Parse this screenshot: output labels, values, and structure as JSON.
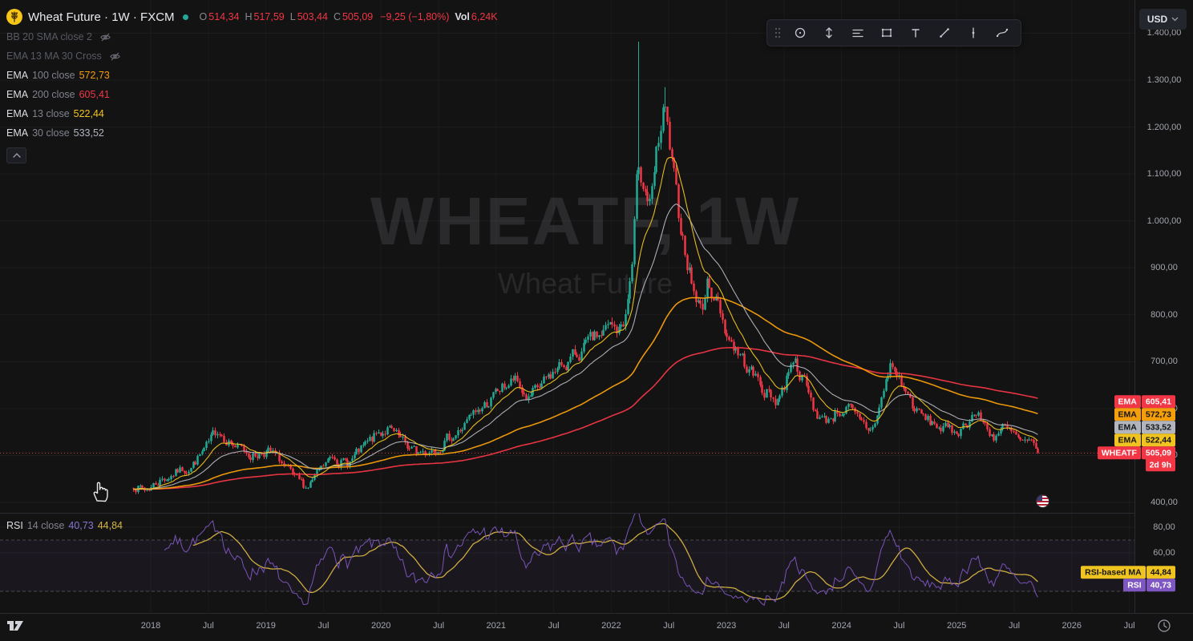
{
  "header": {
    "symbol_title": "Wheat Future · 1W · FXCM",
    "status_color": "#26a69a",
    "ohlc": [
      {
        "label": "O",
        "value": "514,34"
      },
      {
        "label": "H",
        "value": "517,59"
      },
      {
        "label": "L",
        "value": "503,44"
      },
      {
        "label": "C",
        "value": "505,09"
      }
    ],
    "change": "−9,25 (−1,80%)",
    "vol_label": "Vol",
    "vol_value": "6,24K",
    "value_color": "#f23645"
  },
  "legend": {
    "disabled_rows": [
      {
        "label": "BB 20 SMA close 2"
      },
      {
        "label": "EMA 13 MA 30 Cross"
      }
    ],
    "indicator_rows": [
      {
        "name": "EMA",
        "params": "100 close",
        "value": "572,73",
        "color": "#f59e0b"
      },
      {
        "name": "EMA",
        "params": "200 close",
        "value": "605,41",
        "color": "#f23645"
      },
      {
        "name": "EMA",
        "params": "13 close",
        "value": "522,44",
        "color": "#f0c420"
      },
      {
        "name": "EMA",
        "params": "30 close",
        "value": "533,52",
        "color": "#b2b5be"
      }
    ]
  },
  "watermark": {
    "line1": "WHEATF, 1W",
    "line2": "Wheat Future"
  },
  "price_axis": {
    "currency": "USD",
    "ticks": [
      {
        "label": "1.400,00",
        "value": 1400
      },
      {
        "label": "1.300,00",
        "value": 1300
      },
      {
        "label": "1.200,00",
        "value": 1200
      },
      {
        "label": "1.100,00",
        "value": 1100
      },
      {
        "label": "1.000,00",
        "value": 1000
      },
      {
        "label": "900,00",
        "value": 900
      },
      {
        "label": "800,00",
        "value": 800
      },
      {
        "label": "700,00",
        "value": 700
      },
      {
        "label": "600,00",
        "value": 600
      },
      {
        "label": "500,00",
        "value": 500
      },
      {
        "label": "400,00",
        "value": 400
      }
    ],
    "tags": [
      {
        "label": "EMA",
        "value": "605,41",
        "num": 605.41,
        "bg": "#f23645",
        "fg": "#ffffff"
      },
      {
        "label": "EMA",
        "value": "572,73",
        "num": 572.73,
        "bg": "#f59e0b",
        "fg": "#131313"
      },
      {
        "label": "EMA",
        "value": "533,52",
        "num": 533.52,
        "bg": "#b2b5be",
        "fg": "#131313"
      },
      {
        "label": "EMA",
        "value": "522,44",
        "num": 522.44,
        "bg": "#f0c420",
        "fg": "#131313"
      },
      {
        "label": "WHEATF",
        "value": "505,09",
        "num": 505.09,
        "bg": "#f23645",
        "fg": "#ffffff"
      }
    ],
    "countdown": "2d 9h"
  },
  "rsi_pane": {
    "legend": {
      "name": "RSI",
      "params": "14 close",
      "value1": "40,73",
      "value1_color": "#8a76d6",
      "value2": "44,84",
      "value2_color": "#d8b542"
    },
    "ticks": [
      {
        "label": "80,00",
        "value": 80
      },
      {
        "label": "60,00",
        "value": 60
      }
    ],
    "tags": [
      {
        "label": "RSI-based MA",
        "value": "44,84",
        "num": 44.84,
        "bg": "#f0c420",
        "fg": "#131313"
      },
      {
        "label": "RSI",
        "value": "40,73",
        "num": 40.73,
        "bg": "#7e57c2",
        "fg": "#ffffff"
      }
    ]
  },
  "time_axis": {
    "labels": [
      {
        "text": "2018",
        "t": 2018
      },
      {
        "text": "Jul",
        "t": 2018.5
      },
      {
        "text": "2019",
        "t": 2019
      },
      {
        "text": "Jul",
        "t": 2019.5
      },
      {
        "text": "2020",
        "t": 2020
      },
      {
        "text": "Jul",
        "t": 2020.5
      },
      {
        "text": "2021",
        "t": 2021
      },
      {
        "text": "Jul",
        "t": 2021.5
      },
      {
        "text": "2022",
        "t": 2022
      },
      {
        "text": "Jul",
        "t": 2022.5
      },
      {
        "text": "2023",
        "t": 2023
      },
      {
        "text": "Jul",
        "t": 2023.5
      },
      {
        "text": "2024",
        "t": 2024
      },
      {
        "text": "Jul",
        "t": 2024.5
      },
      {
        "text": "2025",
        "t": 2025
      },
      {
        "text": "Jul",
        "t": 2025.5
      },
      {
        "text": "2026",
        "t": 2026
      },
      {
        "text": "Jul",
        "t": 2026.5
      }
    ]
  },
  "toolbar": {
    "tools": [
      "crosshair",
      "price-range",
      "parallel-lines",
      "rectangle",
      "text",
      "trend-line",
      "vertical-line",
      "curve"
    ]
  },
  "chart_data": {
    "type": "candlestick",
    "symbol": "WHEATF",
    "name": "Wheat Future",
    "timeframe": "1W",
    "exchange": "FXCM",
    "last": {
      "open": 514.34,
      "high": 517.59,
      "low": 503.44,
      "close": 505.09,
      "change": -9.25,
      "change_pct": -1.8,
      "volume": "6,24K"
    },
    "price_range": [
      400,
      1400
    ],
    "time_range": [
      2017.85,
      2025.72
    ],
    "grid": true,
    "candle_colors": {
      "up": "#22ab94",
      "down": "#f23645"
    },
    "close_path_anchors": [
      [
        2017.85,
        438
      ],
      [
        2017.95,
        425
      ],
      [
        2018.08,
        447
      ],
      [
        2018.2,
        462
      ],
      [
        2018.35,
        478
      ],
      [
        2018.5,
        520
      ],
      [
        2018.58,
        556
      ],
      [
        2018.65,
        540
      ],
      [
        2018.75,
        515
      ],
      [
        2018.9,
        500
      ],
      [
        2019.0,
        512
      ],
      [
        2019.12,
        488
      ],
      [
        2019.25,
        445
      ],
      [
        2019.35,
        432
      ],
      [
        2019.48,
        468
      ],
      [
        2019.58,
        500
      ],
      [
        2019.7,
        482
      ],
      [
        2019.85,
        515
      ],
      [
        2019.95,
        540
      ],
      [
        2020.05,
        558
      ],
      [
        2020.18,
        525
      ],
      [
        2020.3,
        505
      ],
      [
        2020.42,
        512
      ],
      [
        2020.55,
        532
      ],
      [
        2020.68,
        552
      ],
      [
        2020.8,
        585
      ],
      [
        2020.92,
        612
      ],
      [
        2021.05,
        642
      ],
      [
        2021.15,
        660
      ],
      [
        2021.28,
        618
      ],
      [
        2021.4,
        648
      ],
      [
        2021.5,
        678
      ],
      [
        2021.62,
        700
      ],
      [
        2021.75,
        725
      ],
      [
        2021.88,
        752
      ],
      [
        2021.98,
        772
      ],
      [
        2022.06,
        762
      ],
      [
        2022.12,
        795
      ],
      [
        2022.18,
        905
      ],
      [
        2022.23,
        1120
      ],
      [
        2022.28,
        1085
      ],
      [
        2022.34,
        1025
      ],
      [
        2022.4,
        1150
      ],
      [
        2022.46,
        1235
      ],
      [
        2022.52,
        1120
      ],
      [
        2022.58,
        1015
      ],
      [
        2022.65,
        930
      ],
      [
        2022.72,
        845
      ],
      [
        2022.78,
        808
      ],
      [
        2022.84,
        872
      ],
      [
        2022.92,
        828
      ],
      [
        2023.0,
        762
      ],
      [
        2023.1,
        718
      ],
      [
        2023.2,
        682
      ],
      [
        2023.3,
        648
      ],
      [
        2023.42,
        618
      ],
      [
        2023.5,
        645
      ],
      [
        2023.57,
        718
      ],
      [
        2023.65,
        672
      ],
      [
        2023.75,
        602
      ],
      [
        2023.85,
        572
      ],
      [
        2023.95,
        592
      ],
      [
        2024.05,
        602
      ],
      [
        2024.15,
        568
      ],
      [
        2024.25,
        552
      ],
      [
        2024.33,
        605
      ],
      [
        2024.42,
        692
      ],
      [
        2024.48,
        672
      ],
      [
        2024.55,
        638
      ],
      [
        2024.65,
        592
      ],
      [
        2024.75,
        572
      ],
      [
        2024.85,
        562
      ],
      [
        2024.95,
        548
      ],
      [
        2025.05,
        562
      ],
      [
        2025.15,
        592
      ],
      [
        2025.25,
        562
      ],
      [
        2025.32,
        542
      ],
      [
        2025.4,
        558
      ],
      [
        2025.48,
        545
      ],
      [
        2025.55,
        528
      ],
      [
        2025.65,
        518
      ],
      [
        2025.72,
        505
      ]
    ],
    "spike_wicks": [
      [
        2022.23,
        1382
      ],
      [
        2022.46,
        1285
      ]
    ],
    "indicators": {
      "ema": [
        {
          "period": 13,
          "value": 522.44,
          "color": "#f0c420"
        },
        {
          "period": 30,
          "value": 533.52,
          "color": "#b2b5be"
        },
        {
          "period": 100,
          "value": 572.73,
          "color": "#f59e0b"
        },
        {
          "period": 200,
          "value": 605.41,
          "color": "#f23645"
        }
      ],
      "rsi": {
        "period": 14,
        "value": 40.73,
        "ma_value": 44.84,
        "bands": [
          30,
          70
        ],
        "line_color": "#7e57c2",
        "ma_color": "#d8b542"
      }
    },
    "last_price_line": {
      "value": 505.09,
      "style": "dotted",
      "color": "#f23645"
    },
    "seed": 7
  }
}
